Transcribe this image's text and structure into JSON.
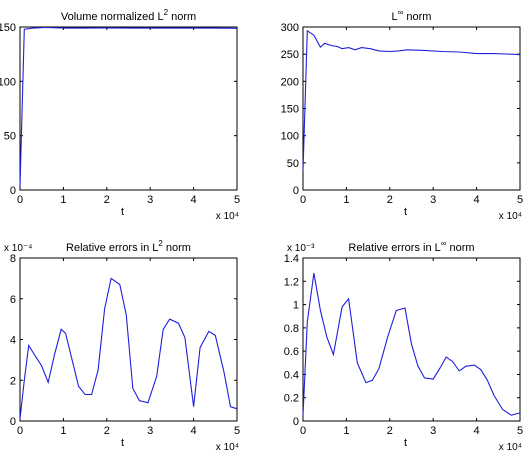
{
  "chart_data": [
    {
      "type": "line",
      "title": "Volume normalized L² norm",
      "xlabel": "t",
      "ylabel": "",
      "x_multiplier": "x 10⁴",
      "y_multiplier": "",
      "xlim": [
        0,
        5
      ],
      "ylim": [
        0,
        150
      ],
      "xticks": [
        "0",
        "1",
        "2",
        "3",
        "4",
        "5"
      ],
      "yticks": [
        "0",
        "50",
        "100",
        "150"
      ],
      "color": "#1f1fe0",
      "series": [
        {
          "x": [
            0,
            0.1,
            0.3,
            0.6,
            1.0,
            1.5,
            2.0,
            2.5,
            3.0,
            3.5,
            4.0,
            4.5,
            5.0
          ],
          "y": [
            3,
            148,
            149,
            149.5,
            149,
            149,
            149.2,
            149,
            149,
            149,
            149,
            149,
            148.8
          ]
        }
      ]
    },
    {
      "type": "line",
      "title": "L^∞ norm",
      "xlabel": "t",
      "ylabel": "",
      "x_multiplier": "x 10⁴",
      "y_multiplier": "",
      "xlim": [
        0,
        5
      ],
      "ylim": [
        0,
        300
      ],
      "xticks": [
        "0",
        "1",
        "2",
        "3",
        "4",
        "5"
      ],
      "yticks": [
        "0",
        "50",
        "100",
        "150",
        "200",
        "250",
        "300"
      ],
      "color": "#1f1fe0",
      "series": [
        {
          "x": [
            0,
            0.1,
            0.25,
            0.4,
            0.5,
            0.65,
            0.8,
            0.9,
            1.05,
            1.2,
            1.35,
            1.55,
            1.75,
            2.0,
            2.2,
            2.4,
            2.8,
            3.2,
            3.6,
            4.0,
            4.4,
            4.8,
            5.0
          ],
          "y": [
            35,
            293,
            285,
            263,
            270,
            266,
            264,
            260,
            262,
            258,
            262,
            260,
            256,
            255,
            256,
            258,
            257,
            255,
            254,
            251,
            251,
            250,
            249
          ]
        }
      ]
    },
    {
      "type": "line",
      "title": "Relative errors in L² norm",
      "xlabel": "t",
      "ylabel": "",
      "x_multiplier": "x 10⁴",
      "y_multiplier": "x 10⁻⁴",
      "xlim": [
        0,
        5
      ],
      "ylim": [
        0,
        8
      ],
      "xticks": [
        "0",
        "1",
        "2",
        "3",
        "4",
        "5"
      ],
      "yticks": [
        "0",
        "2",
        "4",
        "6",
        "8"
      ],
      "color": "#1f1fe0",
      "series": [
        {
          "x": [
            0,
            0.1,
            0.2,
            0.35,
            0.5,
            0.65,
            0.8,
            0.95,
            1.05,
            1.2,
            1.35,
            1.5,
            1.65,
            1.8,
            1.95,
            2.1,
            2.3,
            2.45,
            2.6,
            2.75,
            2.95,
            3.15,
            3.3,
            3.45,
            3.65,
            3.8,
            4.0,
            4.15,
            4.35,
            4.5,
            4.7,
            4.85,
            5.0
          ],
          "y": [
            0.1,
            2.0,
            3.7,
            3.2,
            2.7,
            1.9,
            3.3,
            4.5,
            4.3,
            3.0,
            1.7,
            1.3,
            1.3,
            2.5,
            5.5,
            7.0,
            6.7,
            5.2,
            1.6,
            1.0,
            0.9,
            2.2,
            4.5,
            5.0,
            4.8,
            4.1,
            0.7,
            3.6,
            4.4,
            4.2,
            2.4,
            0.7,
            0.6
          ]
        }
      ]
    },
    {
      "type": "line",
      "title": "Relative errors in L^∞ norm",
      "xlabel": "t",
      "ylabel": "",
      "x_multiplier": "x 10⁴",
      "y_multiplier": "x 10⁻³",
      "xlim": [
        0,
        5
      ],
      "ylim": [
        0,
        1.4
      ],
      "xticks": [
        "0",
        "1",
        "2",
        "3",
        "4",
        "5"
      ],
      "yticks": [
        "0",
        "0.2",
        "0.4",
        "0.6",
        "0.8",
        "1",
        "1.2",
        "1.4"
      ],
      "color": "#1f1fe0",
      "series": [
        {
          "x": [
            0,
            0.1,
            0.25,
            0.4,
            0.55,
            0.7,
            0.9,
            1.05,
            1.25,
            1.45,
            1.6,
            1.75,
            1.95,
            2.15,
            2.35,
            2.5,
            2.65,
            2.8,
            3.0,
            3.15,
            3.3,
            3.45,
            3.6,
            3.75,
            3.95,
            4.1,
            4.25,
            4.4,
            4.6,
            4.8,
            5.0
          ],
          "y": [
            0.05,
            0.85,
            1.27,
            0.95,
            0.72,
            0.57,
            0.98,
            1.05,
            0.5,
            0.33,
            0.35,
            0.45,
            0.72,
            0.95,
            0.97,
            0.66,
            0.47,
            0.37,
            0.36,
            0.45,
            0.55,
            0.51,
            0.43,
            0.47,
            0.48,
            0.44,
            0.35,
            0.22,
            0.1,
            0.05,
            0.07
          ]
        }
      ]
    }
  ]
}
